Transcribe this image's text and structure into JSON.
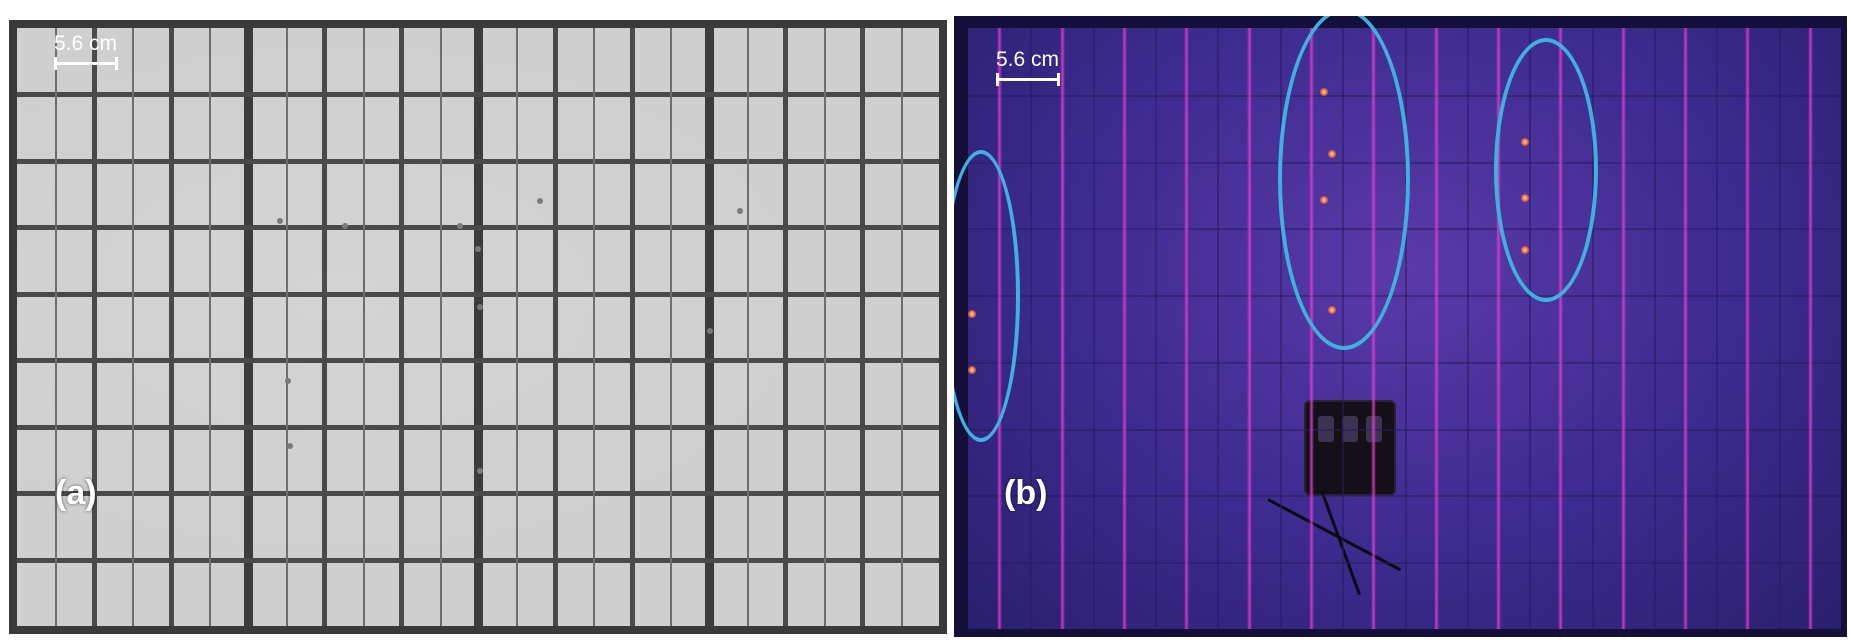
{
  "figure": {
    "panels": [
      {
        "label": "(a)",
        "scale_label": "5.6 cm",
        "image": "electroluminescence-grayscale-solar-module"
      },
      {
        "label": "(b)",
        "scale_label": "5.6 cm",
        "image": "infrared-thermal-solar-module"
      }
    ]
  },
  "colors": {
    "el_cell": "#cfcfcf",
    "el_gridline": "#4a4a4a",
    "thermal_background": "#3c2b8e",
    "thermal_hotline": "#e63cd2",
    "highlight_ring": "#3fb0e0"
  }
}
